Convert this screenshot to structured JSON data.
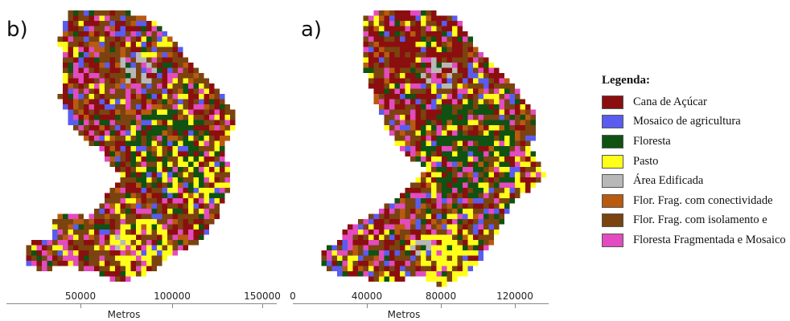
{
  "panels": [
    {
      "label": "b)",
      "scale_ticks": [
        "50000",
        "100000",
        "150000"
      ],
      "scale_unit": "Metros"
    },
    {
      "label": "a)",
      "scale_ticks": [
        "0",
        "40000",
        "80000",
        "120000"
      ],
      "scale_unit": "Metros"
    }
  ],
  "legend": {
    "title": "Legenda:",
    "items": [
      {
        "label": "Cana de Açúcar",
        "color": "#8b0f0f"
      },
      {
        "label": "Mosaico de agricultura",
        "color": "#5a5cf0"
      },
      {
        "label": "Floresta",
        "color": "#0f5212"
      },
      {
        "label": "Pasto",
        "color": "#ffff1a"
      },
      {
        "label": "Área Edificada",
        "color": "#b8b8b8"
      },
      {
        "label": "Flor. Frag. com conectividade",
        "color": "#b85a10"
      },
      {
        "label": "Flor. Frag. com isolamento e",
        "color": "#7a4310"
      },
      {
        "label": "Floresta Fragmentada e Mosaico",
        "color": "#e34bc0"
      }
    ]
  }
}
